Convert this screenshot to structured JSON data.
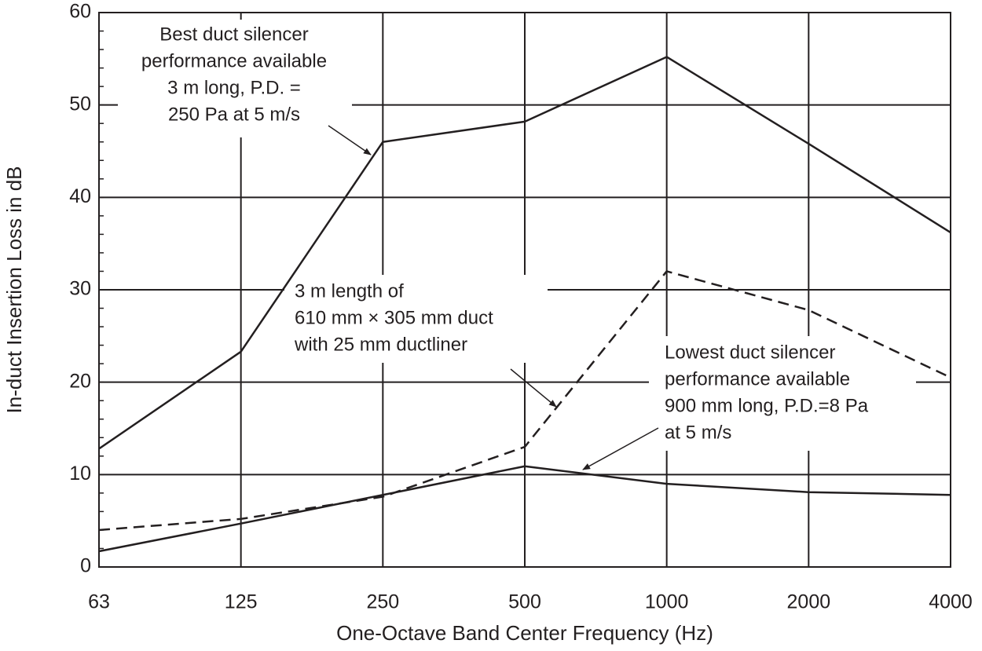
{
  "chart_data": {
    "type": "line",
    "x_label": "One-Octave Band Center Frequency (Hz)",
    "y_label": "In-duct Insertion Loss in dB",
    "categories": [
      "63",
      "125",
      "250",
      "500",
      "1000",
      "2000",
      "4000"
    ],
    "series": [
      {
        "color": "#231f20",
        "style": "solid",
        "values": [
          12.8,
          23.3,
          46,
          48.2,
          55.2,
          45.8,
          36.2
        ]
      },
      {
        "color": "#231f20",
        "style": "dashed",
        "values": [
          4,
          5.2,
          7.6,
          13,
          32,
          27.8,
          20.5
        ]
      },
      {
        "color": "#231f20",
        "style": "solid",
        "values": [
          1.7,
          4.7,
          7.8,
          10.9,
          9,
          8.1,
          7.8
        ]
      }
    ],
    "ylim": [
      0,
      60
    ],
    "yticks": [
      0,
      10,
      20,
      30,
      40,
      50,
      60
    ],
    "grid": true,
    "annotations": [
      {
        "lines": [
          "Best duct silencer",
          "performance available",
          "3 m long, P.D. =",
          "250 Pa at 5 m/s"
        ]
      },
      {
        "lines": [
          "3 m length of",
          "610 mm × 305 mm duct",
          "with 25 mm ductliner"
        ]
      },
      {
        "lines": [
          "Lowest duct silencer",
          "performance available",
          "900 mm long, P.D.=8 Pa",
          "at 5 m/s"
        ]
      }
    ]
  }
}
